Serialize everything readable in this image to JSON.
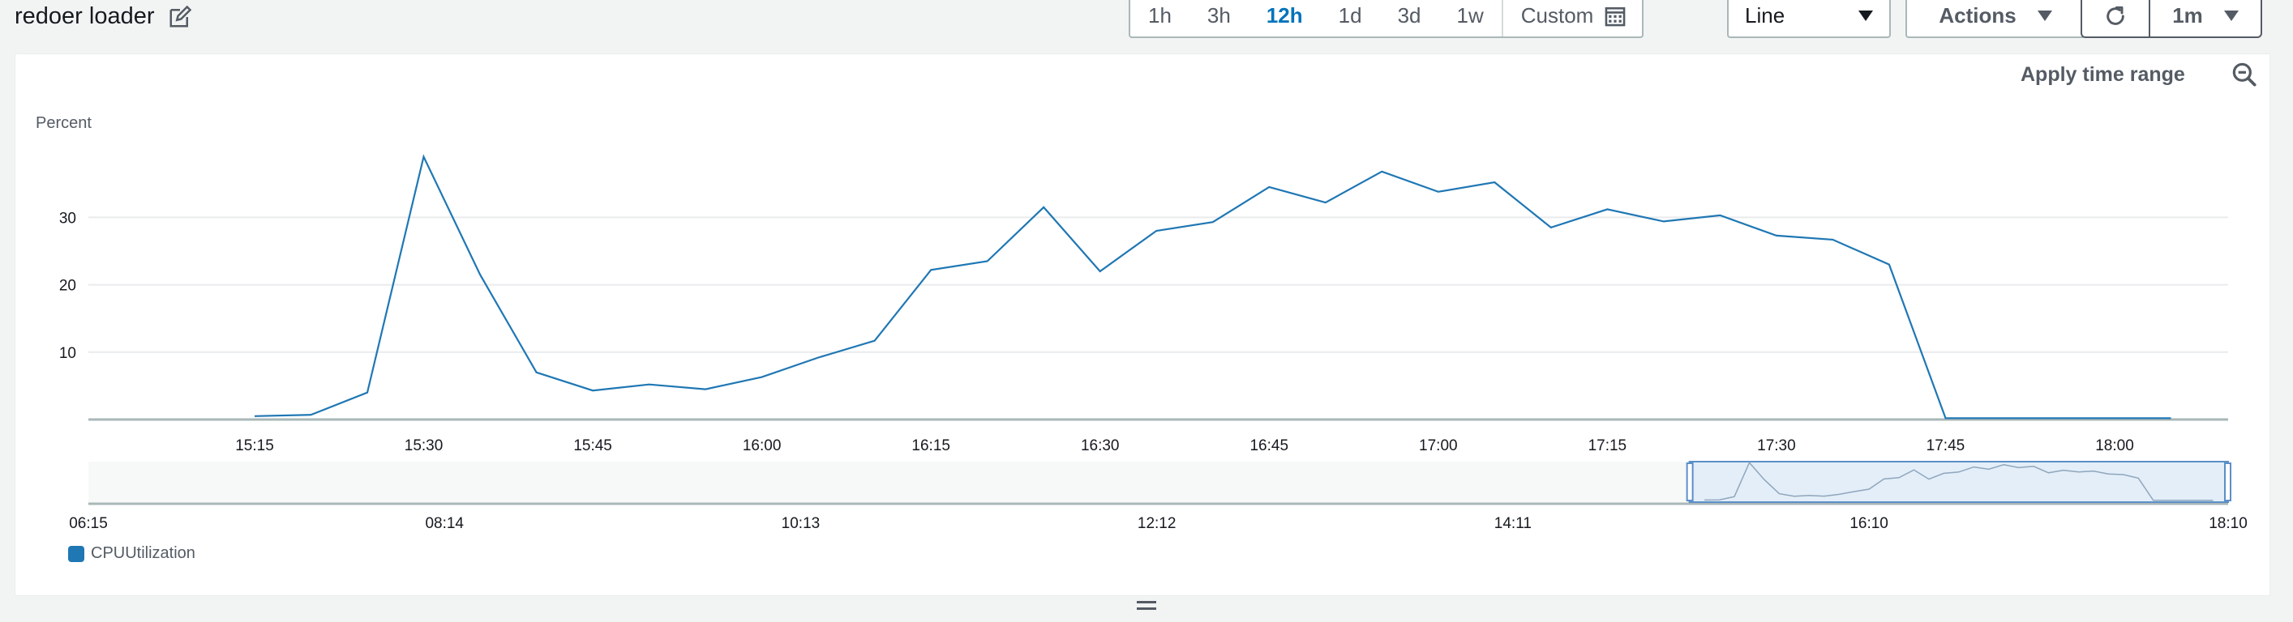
{
  "widget": {
    "title": "redoer loader",
    "time_ranges": [
      "1h",
      "3h",
      "12h",
      "1d",
      "3d",
      "1w"
    ],
    "active_range": "12h",
    "custom_label": "Custom",
    "chart_type_label": "Line",
    "actions_label": "Actions",
    "refresh_interval": "1m",
    "apply_time_range_label": "Apply time range"
  },
  "icons": {
    "edit": "edit-icon",
    "calendar": "calendar-icon",
    "refresh": "refresh-icon",
    "zoom_out": "zoom-out-icon",
    "resize": "resize-handle-icon"
  },
  "colors": {
    "series": "#1f77b4",
    "active": "#0073bb",
    "grid": "#e9ebed",
    "axis": "#aab7b8"
  },
  "chart_data": {
    "type": "line",
    "ylabel": "Percent",
    "yticks": [
      10,
      20,
      30
    ],
    "ylim": [
      0,
      40
    ],
    "xticks": [
      "15:15",
      "15:30",
      "15:45",
      "16:00",
      "16:15",
      "16:30",
      "16:45",
      "17:00",
      "17:15",
      "17:30",
      "17:45",
      "18:00"
    ],
    "xlim": [
      "15:15",
      "18:05"
    ],
    "grid": "horizontal",
    "legend_position": "bottom-left",
    "series": [
      {
        "name": "CPUUtilization",
        "x": [
          "15:15",
          "15:20",
          "15:25",
          "15:30",
          "15:35",
          "15:40",
          "15:45",
          "15:50",
          "15:55",
          "16:00",
          "16:05",
          "16:10",
          "16:15",
          "16:20",
          "16:25",
          "16:30",
          "16:35",
          "16:40",
          "16:45",
          "16:50",
          "16:55",
          "17:00",
          "17:05",
          "17:10",
          "17:15",
          "17:20",
          "17:25",
          "17:30",
          "17:35",
          "17:40",
          "17:45",
          "17:50",
          "17:55",
          "18:00",
          "18:05"
        ],
        "values": [
          0.5,
          0.7,
          4,
          39,
          21.5,
          7,
          4.3,
          5.2,
          4.5,
          6.3,
          9.2,
          11.7,
          22.2,
          23.5,
          31.5,
          22,
          28,
          29.3,
          34.5,
          32.2,
          36.8,
          33.8,
          35.2,
          28.5,
          31.2,
          29.4,
          30.3,
          27.3,
          26.7,
          23,
          0.2,
          0.2,
          0.2,
          0.2,
          0.2
        ]
      }
    ],
    "navigator": {
      "xticks": [
        "06:15",
        "08:14",
        "10:13",
        "12:12",
        "14:11",
        "16:10",
        "18:10"
      ],
      "selected_range": [
        "15:10",
        "18:10"
      ]
    }
  }
}
